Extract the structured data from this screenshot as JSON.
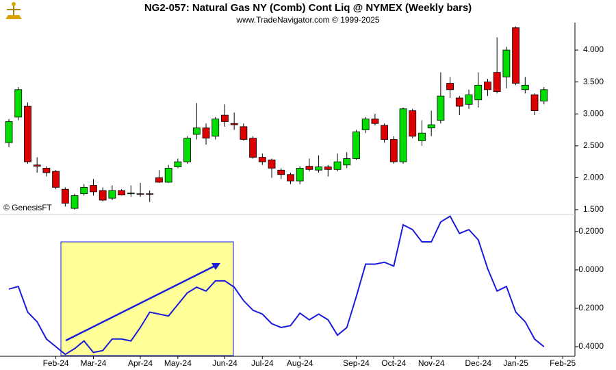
{
  "chart_data": [
    {
      "type": "candlestick",
      "title": "NG2-057:  Natural Gas NY (Comb) Cont Liq @ NYMEX  (Weekly bars)",
      "subtitle": "www.TradeNavigator.com © 1999-2025",
      "annotation": "© GenesisFT",
      "up_color": "#00dd00",
      "down_color": "#dd0000",
      "open": [
        2.55,
        2.95,
        3.12,
        2.2,
        2.15,
        2.1,
        1.82,
        1.52,
        1.75,
        1.88,
        1.8,
        1.68,
        1.8,
        1.75,
        1.75,
        1.75,
        2.0,
        1.93,
        2.17,
        2.25,
        2.68,
        2.78,
        2.65,
        2.98,
        2.85,
        2.8,
        2.62,
        2.32,
        2.28,
        2.12,
        2.05,
        1.95,
        2.18,
        2.12,
        2.17,
        2.13,
        2.2,
        2.3,
        2.75,
        2.92,
        2.82,
        2.6,
        2.25,
        3.05,
        2.58,
        2.78,
        2.9,
        3.48,
        3.25,
        3.15,
        3.22,
        3.5,
        3.65,
        3.58,
        4.35,
        3.38,
        3.3,
        3.2
      ],
      "high": [
        2.92,
        3.42,
        3.18,
        2.32,
        2.18,
        2.12,
        1.85,
        1.75,
        1.9,
        1.98,
        1.85,
        1.88,
        1.82,
        1.88,
        1.92,
        1.8,
        2.12,
        2.2,
        2.3,
        2.65,
        3.17,
        2.85,
        2.95,
        3.15,
        3.02,
        2.85,
        2.65,
        2.38,
        2.3,
        2.15,
        2.08,
        2.18,
        2.3,
        2.35,
        2.2,
        2.38,
        2.4,
        2.75,
        2.95,
        3.0,
        2.85,
        2.65,
        3.1,
        3.08,
        2.9,
        3.05,
        3.65,
        3.58,
        3.28,
        3.38,
        3.65,
        3.55,
        4.2,
        4.05,
        4.37,
        3.58,
        3.32,
        3.42
      ],
      "low": [
        2.48,
        2.9,
        2.22,
        2.08,
        2.02,
        1.82,
        1.55,
        1.5,
        1.72,
        1.72,
        1.63,
        1.65,
        1.72,
        1.7,
        1.7,
        1.62,
        1.92,
        1.92,
        2.15,
        2.22,
        2.6,
        2.52,
        2.6,
        2.8,
        2.75,
        2.58,
        2.3,
        2.2,
        2.0,
        1.98,
        1.9,
        1.9,
        2.1,
        2.08,
        2.02,
        2.1,
        2.15,
        2.28,
        2.7,
        2.82,
        2.55,
        2.22,
        2.22,
        2.62,
        2.5,
        2.65,
        2.85,
        3.25,
        2.98,
        3.08,
        3.1,
        3.28,
        3.32,
        3.4,
        3.45,
        3.32,
        2.98,
        3.15
      ],
      "close": [
        2.88,
        3.38,
        2.25,
        2.18,
        2.08,
        1.85,
        1.6,
        1.72,
        1.85,
        1.78,
        1.65,
        1.8,
        1.73,
        1.76,
        1.74,
        1.74,
        1.93,
        2.15,
        2.25,
        2.62,
        2.78,
        2.62,
        2.92,
        2.88,
        2.83,
        2.6,
        2.32,
        2.25,
        2.15,
        2.05,
        1.95,
        2.15,
        2.13,
        2.17,
        2.13,
        2.25,
        2.3,
        2.72,
        2.92,
        2.85,
        2.6,
        2.25,
        3.08,
        2.65,
        2.7,
        2.83,
        3.28,
        3.38,
        3.12,
        3.3,
        3.45,
        3.38,
        3.35,
        4.0,
        3.48,
        3.45,
        3.05,
        3.38
      ],
      "xlim": [
        -0.95,
        60.3
      ],
      "xticks": [
        {
          "value": 5,
          "label": "Feb-24"
        },
        {
          "value": 9,
          "label": "Mar-24"
        },
        {
          "value": 14,
          "label": "Apr-24"
        },
        {
          "value": 18,
          "label": "May-24"
        },
        {
          "value": 23,
          "label": "Jun-24"
        },
        {
          "value": 27,
          "label": "Jul-24"
        },
        {
          "value": 31,
          "label": "Aug-24"
        },
        {
          "value": 37,
          "label": "Sep-24"
        },
        {
          "value": 41,
          "label": "Oct-24"
        },
        {
          "value": 45,
          "label": "Nov-24"
        },
        {
          "value": 50,
          "label": "Dec-24"
        },
        {
          "value": 54,
          "label": "Jan-25"
        },
        {
          "value": 59,
          "label": "Feb-25"
        }
      ],
      "ylim": [
        1.425,
        4.43
      ],
      "yticks": [
        {
          "value": 1.5,
          "label": "1.500"
        },
        {
          "value": 2,
          "label": "2.000"
        },
        {
          "value": 2.5,
          "label": "2.500"
        },
        {
          "value": 3,
          "label": "3.000"
        },
        {
          "value": 3.5,
          "label": "3.500"
        },
        {
          "value": 4,
          "label": "4.000"
        }
      ]
    },
    {
      "type": "line",
      "color": "#1a1adb",
      "values": [
        -0.1,
        -0.086,
        -0.22,
        -0.27,
        -0.36,
        -0.4,
        -0.44,
        -0.41,
        -0.37,
        -0.43,
        -0.42,
        -0.36,
        -0.36,
        -0.37,
        -0.3,
        -0.22,
        -0.23,
        -0.24,
        -0.18,
        -0.12,
        -0.09,
        -0.11,
        -0.057,
        -0.057,
        -0.09,
        -0.16,
        -0.21,
        -0.23,
        -0.28,
        -0.3,
        -0.29,
        -0.225,
        -0.26,
        -0.23,
        -0.26,
        -0.34,
        -0.3,
        -0.14,
        0.03,
        0.03,
        0.04,
        0.02,
        0.235,
        0.21,
        0.146,
        0.146,
        0.25,
        0.28,
        0.19,
        0.21,
        0.157,
        0.007,
        -0.11,
        -0.086,
        -0.22,
        -0.27,
        -0.36,
        -0.4
      ],
      "xlim": [
        -0.95,
        60.3
      ],
      "ylim": [
        -0.45,
        0.289
      ],
      "yticks": [
        {
          "value": -0.4,
          "label": "-0.4000"
        },
        {
          "value": -0.2,
          "label": "-0.2000"
        },
        {
          "value": 0,
          "label": "0.0000"
        },
        {
          "value": 0.2,
          "label": "0.2000"
        }
      ]
    }
  ]
}
